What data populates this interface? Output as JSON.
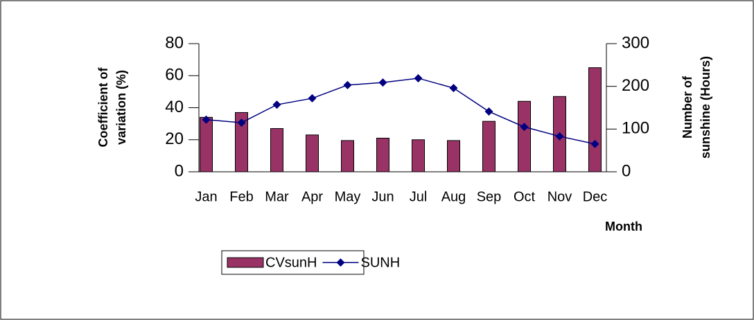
{
  "chart_data": {
    "type": "bar",
    "categories": [
      "Jan",
      "Feb",
      "Mar",
      "Apr",
      "May",
      "Jun",
      "Jul",
      "Aug",
      "Sep",
      "Oct",
      "Nov",
      "Dec"
    ],
    "series": [
      {
        "name": "CVsunH",
        "type": "bar",
        "color": "#993366",
        "values": [
          34,
          37,
          27,
          23,
          19.5,
          21,
          20,
          19.5,
          31.5,
          44,
          47,
          65
        ]
      },
      {
        "name": "SUNH",
        "type": "line",
        "axis": "y2",
        "color": "#000080",
        "values": [
          122,
          115,
          157,
          172,
          203,
          209,
          219,
          196,
          141,
          105,
          83,
          65
        ]
      }
    ],
    "ylabel": [
      "Coefficient of",
      "variation (%)"
    ],
    "y2label": [
      "Number of",
      "sunshine (Hours)"
    ],
    "xlabel": "Month",
    "ylim": [
      0,
      80
    ],
    "yticks": [
      0,
      20,
      40,
      60,
      80
    ],
    "y2lim": [
      0,
      300
    ],
    "y2ticks": [
      0,
      100,
      200,
      300
    ],
    "grid": false,
    "legend": "bottom"
  }
}
